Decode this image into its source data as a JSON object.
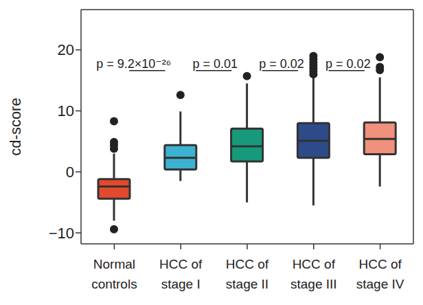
{
  "chart_data": {
    "type": "box",
    "ylabel": "cd-score",
    "categories": [
      "Normal\ncontrols",
      "HCC of\nstage I",
      "HCC of\nstage II",
      "HCC of\nstage III",
      "HCC of\nstage IV"
    ],
    "colors": [
      "#e2492d",
      "#3cb2d0",
      "#17997c",
      "#2d4b88",
      "#ef917b"
    ],
    "boxes": [
      {
        "whisker_low": -8.0,
        "q1": -4.4,
        "median": -2.4,
        "q3": -1.2,
        "whisker_high": 3.0,
        "outliers": [
          8.3,
          4.9,
          4.4,
          3.8,
          -9.4
        ]
      },
      {
        "whisker_low": -1.5,
        "q1": 0.4,
        "median": 2.3,
        "q3": 4.4,
        "whisker_high": 9.9,
        "outliers": [
          12.6
        ]
      },
      {
        "whisker_low": -5.0,
        "q1": 1.7,
        "median": 4.2,
        "q3": 7.1,
        "whisker_high": 14.5,
        "outliers": [
          15.7
        ]
      },
      {
        "whisker_low": -5.5,
        "q1": 2.3,
        "median": 5.1,
        "q3": 8.0,
        "whisker_high": 15.5,
        "outliers": [
          16.0,
          16.5,
          17.0,
          17.5,
          18.0,
          18.5,
          19.0
        ]
      },
      {
        "whisker_low": -2.4,
        "q1": 2.9,
        "median": 5.4,
        "q3": 8.1,
        "whisker_high": 15.5,
        "outliers": [
          16.7,
          17.2,
          18.8
        ]
      }
    ],
    "comparisons": [
      {
        "between": [
          "Normal\ncontrols",
          "HCC of\nstage I"
        ],
        "label": "p = 9.2×10⁻²⁶"
      },
      {
        "between": [
          "HCC of\nstage I",
          "HCC of\nstage II"
        ],
        "label": "p = 0.01"
      },
      {
        "between": [
          "HCC of\nstage II",
          "HCC of\nstage III"
        ],
        "label": "p = 0.02"
      },
      {
        "between": [
          "HCC of\nstage III",
          "HCC of\nstage IV"
        ],
        "label": "p = 0.02"
      }
    ],
    "ylim": [
      -11.8,
      26.6
    ],
    "yticks": [
      {
        "value": -10,
        "label": "−10"
      },
      0,
      10,
      20
    ]
  }
}
